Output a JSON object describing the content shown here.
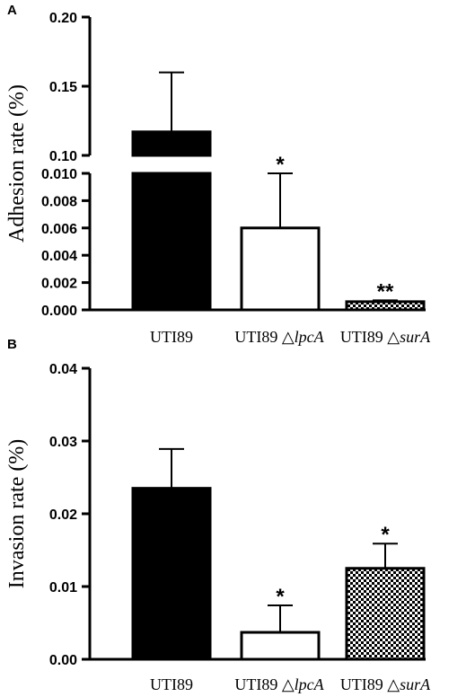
{
  "chart_data": [
    {
      "panel": "A",
      "type": "bar",
      "ylabel": "Adhesion rate (%)",
      "axis_break": true,
      "lower_axis": {
        "ylim": [
          0,
          0.01
        ],
        "ticks": [
          "0.000",
          "0.002",
          "0.004",
          "0.006",
          "0.008",
          "0.010"
        ]
      },
      "upper_axis": {
        "ylim": [
          0.1,
          0.2
        ],
        "ticks": [
          "0.10",
          "0.15",
          "0.20"
        ]
      },
      "categories": [
        {
          "base": "UTI89",
          "mutant": ""
        },
        {
          "base": "UTI89 △",
          "mutant": "lpcA"
        },
        {
          "base": "UTI89 △",
          "mutant": "surA"
        }
      ],
      "values": [
        0.117,
        0.006,
        0.0006
      ],
      "errors": [
        0.043,
        0.004,
        0.0001
      ],
      "fills": [
        "solid",
        "white",
        "checker"
      ],
      "annotations": [
        "",
        "*",
        "**"
      ]
    },
    {
      "panel": "B",
      "type": "bar",
      "ylabel": "Invasion rate (%)",
      "ylim": [
        0,
        0.04
      ],
      "ticks": [
        "0.00",
        "0.01",
        "0.02",
        "0.03",
        "0.04"
      ],
      "categories": [
        {
          "base": "UTI89",
          "mutant": ""
        },
        {
          "base": "UTI89 △",
          "mutant": "lpcA"
        },
        {
          "base": "UTI89 △",
          "mutant": "surA"
        }
      ],
      "values": [
        0.0235,
        0.0037,
        0.0125
      ],
      "errors": [
        0.0054,
        0.0037,
        0.0034
      ],
      "fills": [
        "solid",
        "white",
        "checker"
      ],
      "annotations": [
        "",
        "*",
        "*"
      ]
    }
  ]
}
